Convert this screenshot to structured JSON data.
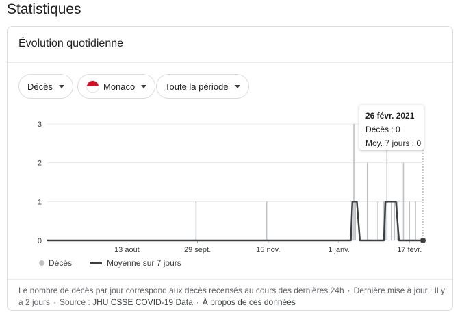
{
  "page": {
    "title": "Statistiques"
  },
  "card": {
    "title": "Évolution quotidienne",
    "filters": {
      "metric": "Décès",
      "country": "Monaco",
      "period": "Toute la période"
    }
  },
  "tooltip": {
    "date": "26 févr. 2021",
    "deaths": "Décès : 0",
    "avg": "Moy. 7 jours : 0"
  },
  "legend": {
    "deaths": "Décès",
    "average": "Moyenne sur 7 jours"
  },
  "footer": {
    "note": "Le nombre de décès par jour correspond aux décès recensés au cours des dernières 24h",
    "updated": "Dernière mise à jour : Il y a 2 jours",
    "source_label": "Source :",
    "source_link": "JHU CSSE COVID-19 Data",
    "about_link": "À propos de ces données"
  },
  "colors": {
    "bar": "#bdc1c6",
    "line": "#3c4043",
    "grid": "#e8eaed"
  },
  "chart_data": {
    "type": "bar",
    "start_date": "2020-06-21",
    "end_date": "2021-02-26",
    "ylim": [
      0,
      3
    ],
    "yticks": [
      0,
      1,
      2,
      3
    ],
    "xticks": [
      {
        "date": "2020-08-13",
        "label": "13 août"
      },
      {
        "date": "2020-09-29",
        "label": "29 sept."
      },
      {
        "date": "2020-11-15",
        "label": "15 nov."
      },
      {
        "date": "2021-01-01",
        "label": "1 janv."
      },
      {
        "date": "2021-02-17",
        "label": "17 févr."
      }
    ],
    "series": [
      {
        "name": "Décès",
        "type": "bar",
        "points": [
          {
            "date": "2020-09-28",
            "value": 1
          },
          {
            "date": "2020-11-14",
            "value": 1
          },
          {
            "date": "2021-01-10",
            "value": 1
          },
          {
            "date": "2021-01-11",
            "value": 3
          },
          {
            "date": "2021-01-12",
            "value": 1
          },
          {
            "date": "2021-01-20",
            "value": 2
          },
          {
            "date": "2021-01-27",
            "value": 1
          },
          {
            "date": "2021-01-31",
            "value": 1
          },
          {
            "date": "2021-02-01",
            "value": 1
          },
          {
            "date": "2021-02-02",
            "value": 3
          },
          {
            "date": "2021-02-05",
            "value": 1
          },
          {
            "date": "2021-02-07",
            "value": 1
          },
          {
            "date": "2021-02-09",
            "value": 1
          },
          {
            "date": "2021-02-13",
            "value": 2
          },
          {
            "date": "2021-02-17",
            "value": 1
          },
          {
            "date": "2021-02-21",
            "value": 1
          }
        ]
      },
      {
        "name": "Moyenne sur 7 jours",
        "type": "line",
        "points": [
          {
            "date": "2020-06-21",
            "value": 0
          },
          {
            "date": "2021-01-09",
            "value": 0
          },
          {
            "date": "2021-01-10",
            "value": 1
          },
          {
            "date": "2021-01-13",
            "value": 1
          },
          {
            "date": "2021-01-15",
            "value": 0
          },
          {
            "date": "2021-01-31",
            "value": 0
          },
          {
            "date": "2021-02-01",
            "value": 1
          },
          {
            "date": "2021-02-08",
            "value": 1
          },
          {
            "date": "2021-02-10",
            "value": 0
          },
          {
            "date": "2021-02-26",
            "value": 0
          }
        ]
      }
    ],
    "highlight": {
      "date": "2021-02-26",
      "value": 0
    }
  }
}
